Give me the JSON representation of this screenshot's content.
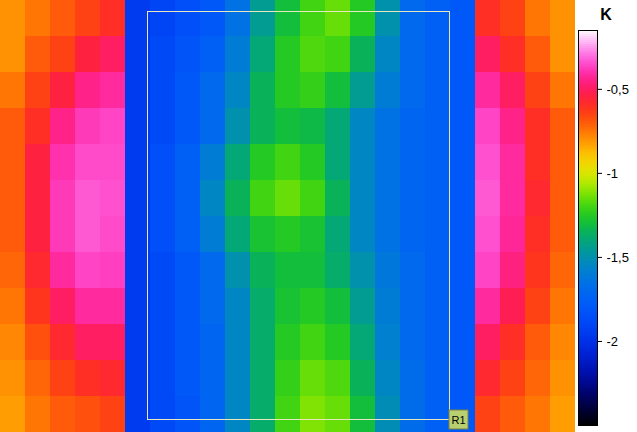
{
  "chart_data": {
    "type": "heatmap",
    "tick_labels": false,
    "colors": [
      "#000000",
      "#000080",
      "#0020e0",
      "#0050ff",
      "#0070f0",
      "#00a090",
      "#10d000",
      "#ffff00",
      "#ff9000",
      "#ff1010",
      "#ff20e0",
      "#ffffff"
    ],
    "colorbar": {
      "label": "K",
      "range": [
        -2.5,
        -0.15
      ],
      "ticks": [
        {
          "value": -0.5,
          "label": "-0,5"
        },
        -1,
        {
          "value": -1.5,
          "label": "-1,5"
        },
        -2
      ]
    },
    "annotations": [
      "R1"
    ],
    "cells": [
      [
        -0.8,
        -0.75,
        -0.7,
        -0.65,
        -0.6,
        -1.95,
        -1.9,
        -1.85,
        -1.8,
        -1.65,
        -1.45,
        -1.3,
        -1.2,
        -1.15,
        -1.25,
        -1.5,
        -1.7,
        -1.75,
        -1.8,
        -0.6,
        -0.65,
        -0.75,
        -0.8
      ],
      [
        -0.8,
        -0.7,
        -0.65,
        -0.55,
        -0.5,
        -1.95,
        -1.88,
        -1.82,
        -1.75,
        -1.6,
        -1.4,
        -1.25,
        -1.18,
        -1.2,
        -1.35,
        -1.55,
        -1.7,
        -1.75,
        -1.8,
        -0.5,
        -0.6,
        -0.7,
        -0.8
      ],
      [
        -0.75,
        -0.65,
        -0.55,
        -0.45,
        -0.42,
        -1.95,
        -1.88,
        -1.8,
        -1.7,
        -1.55,
        -1.35,
        -1.25,
        -1.22,
        -1.3,
        -1.45,
        -1.6,
        -1.7,
        -1.75,
        -1.8,
        -0.42,
        -0.5,
        -0.65,
        -0.75
      ],
      [
        -0.7,
        -0.6,
        -0.45,
        -0.38,
        -0.36,
        -1.95,
        -1.88,
        -1.8,
        -1.7,
        -1.5,
        -1.35,
        -1.3,
        -1.32,
        -1.4,
        -1.55,
        -1.65,
        -1.72,
        -1.75,
        -1.8,
        -0.36,
        -0.45,
        -0.6,
        -0.7
      ],
      [
        -0.7,
        -0.55,
        -0.4,
        -0.35,
        -0.35,
        -1.95,
        -1.85,
        -1.75,
        -1.6,
        -1.4,
        -1.25,
        -1.2,
        -1.25,
        -1.4,
        -1.55,
        -1.65,
        -1.72,
        -1.75,
        -1.8,
        -0.34,
        -0.42,
        -0.6,
        -0.7
      ],
      [
        -0.7,
        -0.55,
        -0.38,
        -0.33,
        -0.34,
        -1.95,
        -1.85,
        -1.75,
        -1.55,
        -1.35,
        -1.2,
        -1.15,
        -1.2,
        -1.35,
        -1.55,
        -1.65,
        -1.72,
        -1.75,
        -1.8,
        -0.33,
        -0.42,
        -0.58,
        -0.7
      ],
      [
        -0.7,
        -0.55,
        -0.38,
        -0.33,
        -0.35,
        -1.95,
        -1.85,
        -1.75,
        -1.6,
        -1.4,
        -1.28,
        -1.25,
        -1.28,
        -1.4,
        -1.55,
        -1.65,
        -1.72,
        -1.75,
        -1.8,
        -0.34,
        -0.43,
        -0.6,
        -0.7
      ],
      [
        -0.72,
        -0.58,
        -0.42,
        -0.36,
        -0.37,
        -1.95,
        -1.88,
        -1.8,
        -1.7,
        -1.5,
        -1.35,
        -1.3,
        -1.3,
        -1.38,
        -1.5,
        -1.62,
        -1.7,
        -1.75,
        -1.8,
        -0.36,
        -0.46,
        -0.62,
        -0.72
      ],
      [
        -0.75,
        -0.62,
        -0.5,
        -0.42,
        -0.42,
        -1.95,
        -1.88,
        -1.8,
        -1.7,
        -1.55,
        -1.38,
        -1.28,
        -1.25,
        -1.3,
        -1.45,
        -1.6,
        -1.7,
        -1.75,
        -1.8,
        -0.42,
        -0.52,
        -0.65,
        -0.75
      ],
      [
        -0.78,
        -0.68,
        -0.58,
        -0.5,
        -0.5,
        -1.95,
        -1.88,
        -1.8,
        -1.72,
        -1.55,
        -1.38,
        -1.25,
        -1.2,
        -1.25,
        -1.4,
        -1.58,
        -1.7,
        -1.75,
        -1.8,
        -0.5,
        -0.6,
        -0.7,
        -0.78
      ],
      [
        -0.8,
        -0.72,
        -0.65,
        -0.6,
        -0.58,
        -1.95,
        -1.88,
        -1.8,
        -1.72,
        -1.55,
        -1.38,
        -1.22,
        -1.15,
        -1.18,
        -1.35,
        -1.55,
        -1.68,
        -1.75,
        -1.8,
        -0.58,
        -0.65,
        -0.72,
        -0.8
      ],
      [
        -0.82,
        -0.75,
        -0.7,
        -0.68,
        -0.65,
        -1.95,
        -1.88,
        -1.82,
        -1.72,
        -1.55,
        -1.38,
        -1.2,
        -1.12,
        -1.15,
        -1.3,
        -1.52,
        -1.68,
        -1.75,
        -1.8,
        -0.65,
        -0.7,
        -0.75,
        -0.82
      ]
    ]
  }
}
